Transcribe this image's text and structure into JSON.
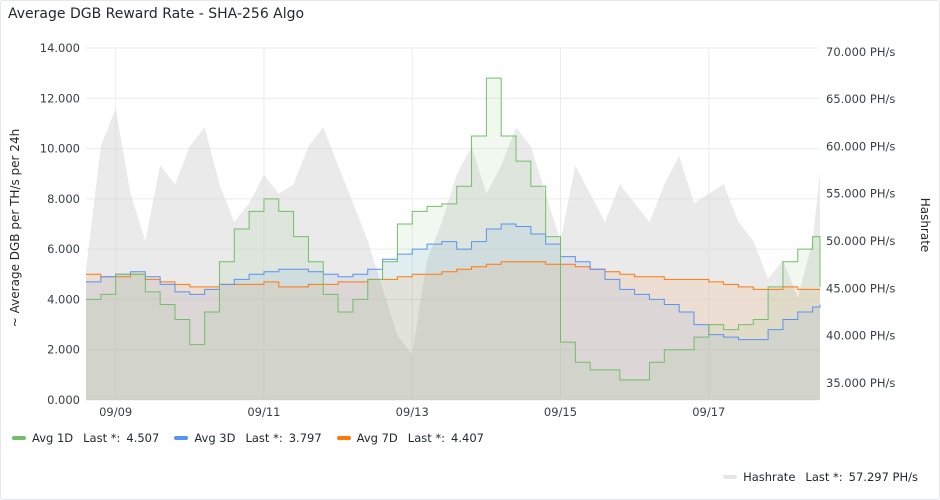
{
  "panel": {
    "title": "Average DGB Reward Rate - SHA-256 Algo"
  },
  "colors": {
    "avg1d": "#73bf69",
    "avg3d": "#5794f2",
    "avg7d": "#ff780a",
    "hashrate": "#bfbfbf"
  },
  "legend": [
    {
      "name": "Avg 1D",
      "last_label": "Last *:",
      "last": "4.507",
      "color": "#73bf69"
    },
    {
      "name": "Avg 3D",
      "last_label": "Last *:",
      "last": "3.797",
      "color": "#5794f2"
    },
    {
      "name": "Avg 7D",
      "last_label": "Last *:",
      "last": "4.407",
      "color": "#ff780a"
    }
  ],
  "legend_right": {
    "name": "Hashrate",
    "last_label": "Last *:",
    "last": "57.297 PH/s",
    "color": "#bfbfbf"
  },
  "chart_data": {
    "type": "line",
    "title": "Average DGB Reward Rate - SHA-256 Algo",
    "ylabel": "~ Average DGB per TH/s per 24h",
    "y2label": "Hashrate",
    "ylim": [
      0,
      14
    ],
    "y2lim": [
      33.2,
      70.4
    ],
    "xlim": [
      8.6,
      18.5
    ],
    "x_unit": "day of September",
    "x_ticks": [
      {
        "x": 9,
        "label": "09/09"
      },
      {
        "x": 11,
        "label": "09/11"
      },
      {
        "x": 13,
        "label": "09/13"
      },
      {
        "x": 15,
        "label": "09/15"
      },
      {
        "x": 17,
        "label": "09/17"
      }
    ],
    "y_ticks": [
      "0.000",
      "2.000",
      "4.000",
      "6.000",
      "8.000",
      "10.000",
      "12.000",
      "14.000"
    ],
    "y2_ticks": [
      {
        "value": 35,
        "label": "35.000 PH/s"
      },
      {
        "value": 40,
        "label": "40.000 PH/s"
      },
      {
        "value": 45,
        "label": "45.000 PH/s"
      },
      {
        "value": 50,
        "label": "50.000 PH/s"
      },
      {
        "value": 55,
        "label": "55.000 PH/s"
      },
      {
        "value": 60,
        "label": "60.000 PH/s"
      },
      {
        "value": 65,
        "label": "65.000 PH/s"
      },
      {
        "value": 70,
        "label": "70.000 PH/s"
      }
    ],
    "grid": true,
    "legend_position": "bottom",
    "x": [
      8.6,
      8.8,
      9.0,
      9.2,
      9.4,
      9.6,
      9.8,
      10.0,
      10.2,
      10.4,
      10.6,
      10.8,
      11.0,
      11.2,
      11.4,
      11.6,
      11.8,
      12.0,
      12.2,
      12.4,
      12.6,
      12.8,
      13.0,
      13.2,
      13.4,
      13.6,
      13.8,
      14.0,
      14.2,
      14.4,
      14.6,
      14.8,
      15.0,
      15.2,
      15.4,
      15.6,
      15.8,
      16.0,
      16.2,
      16.4,
      16.6,
      16.8,
      17.0,
      17.2,
      17.4,
      17.6,
      17.8,
      18.0,
      18.2,
      18.4,
      18.5
    ],
    "series": [
      {
        "name": "Avg 1D",
        "axis": "left",
        "color": "#73bf69",
        "values": [
          4.0,
          4.2,
          5.0,
          5.0,
          4.3,
          3.8,
          3.2,
          2.2,
          3.5,
          5.5,
          6.8,
          7.5,
          8.0,
          7.5,
          6.5,
          5.5,
          4.2,
          3.5,
          4.0,
          4.8,
          5.5,
          7.0,
          7.5,
          7.7,
          7.8,
          8.5,
          10.5,
          12.8,
          10.5,
          9.5,
          8.5,
          6.5,
          2.3,
          1.5,
          1.2,
          1.2,
          0.8,
          0.8,
          1.5,
          2.0,
          2.0,
          2.5,
          3.0,
          2.8,
          3.0,
          3.2,
          4.5,
          5.5,
          6.0,
          6.5,
          4.5
        ]
      },
      {
        "name": "Avg 3D",
        "axis": "left",
        "color": "#5794f2",
        "values": [
          4.7,
          4.9,
          5.0,
          5.1,
          4.9,
          4.6,
          4.3,
          4.2,
          4.4,
          4.6,
          4.8,
          5.0,
          5.1,
          5.2,
          5.2,
          5.1,
          5.0,
          4.9,
          5.0,
          5.2,
          5.6,
          5.8,
          6.0,
          6.2,
          6.3,
          6.0,
          6.3,
          6.8,
          7.0,
          6.9,
          6.6,
          6.2,
          5.7,
          5.5,
          5.2,
          4.8,
          4.4,
          4.2,
          4.0,
          3.8,
          3.5,
          3.0,
          2.6,
          2.5,
          2.4,
          2.4,
          2.8,
          3.2,
          3.5,
          3.7,
          3.8
        ]
      },
      {
        "name": "Avg 7D",
        "axis": "left",
        "color": "#ff780a",
        "values": [
          5.0,
          4.9,
          4.9,
          5.0,
          4.8,
          4.7,
          4.6,
          4.5,
          4.5,
          4.6,
          4.6,
          4.6,
          4.7,
          4.5,
          4.5,
          4.6,
          4.6,
          4.7,
          4.7,
          4.8,
          4.8,
          4.9,
          5.0,
          5.0,
          5.1,
          5.2,
          5.3,
          5.4,
          5.5,
          5.5,
          5.5,
          5.4,
          5.4,
          5.3,
          5.2,
          5.1,
          5.0,
          4.9,
          4.9,
          4.8,
          4.8,
          4.8,
          4.7,
          4.6,
          4.5,
          4.4,
          4.4,
          4.5,
          4.4,
          4.4,
          4.4
        ]
      },
      {
        "name": "Hashrate",
        "axis": "right",
        "color": "#bfbfbf",
        "unit": "PH/s",
        "values": [
          47.0,
          60.0,
          64.0,
          55.0,
          50.0,
          58.0,
          56.0,
          60.0,
          62.0,
          56.0,
          52.0,
          54.0,
          57.0,
          55.0,
          56.0,
          60.0,
          62.0,
          58.0,
          54.0,
          50.0,
          45.0,
          40.0,
          38.0,
          48.0,
          52.0,
          57.0,
          60.0,
          55.0,
          58.0,
          62.0,
          60.0,
          55.0,
          50.0,
          58.0,
          55.0,
          52.0,
          56.0,
          54.0,
          52.0,
          56.0,
          59.0,
          54.0,
          55.0,
          56.0,
          52.0,
          50.0,
          46.0,
          48.0,
          44.0,
          50.0,
          57.3
        ]
      }
    ]
  }
}
